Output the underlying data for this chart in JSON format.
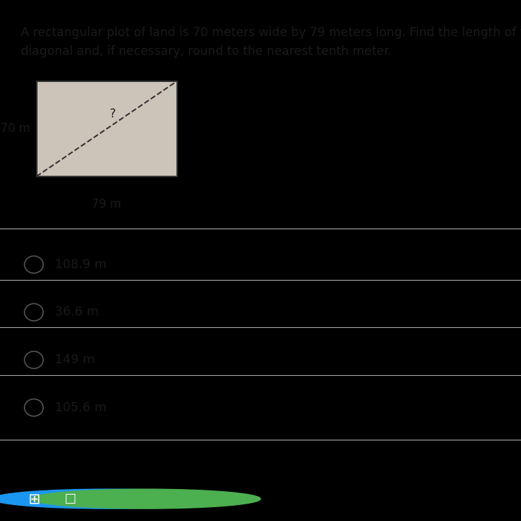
{
  "title_line1": "A rectangular plot of land is 70 meters wide by 79 meters long. Find the length of the",
  "title_line2": "diagonal and, if necessary, round to the nearest tenth meter.",
  "rect_label_left": "70 m",
  "rect_label_bottom": "79 m",
  "diagonal_label": "?",
  "choices": [
    "108.9 m",
    "36.6 m",
    "149 m",
    "105.6 m"
  ],
  "bg_color": "#d4cbbf",
  "text_color": "#1a1a1a",
  "rect_face_color": "#ccc4b8",
  "rect_edge_color": "#333333",
  "diag_color": "#333333",
  "sep_color": "#aaaaaa",
  "circle_color": "#555555",
  "title_fontsize": 12.5,
  "choice_fontsize": 13,
  "label_fontsize": 12,
  "taskbar_color": "#0078d7"
}
